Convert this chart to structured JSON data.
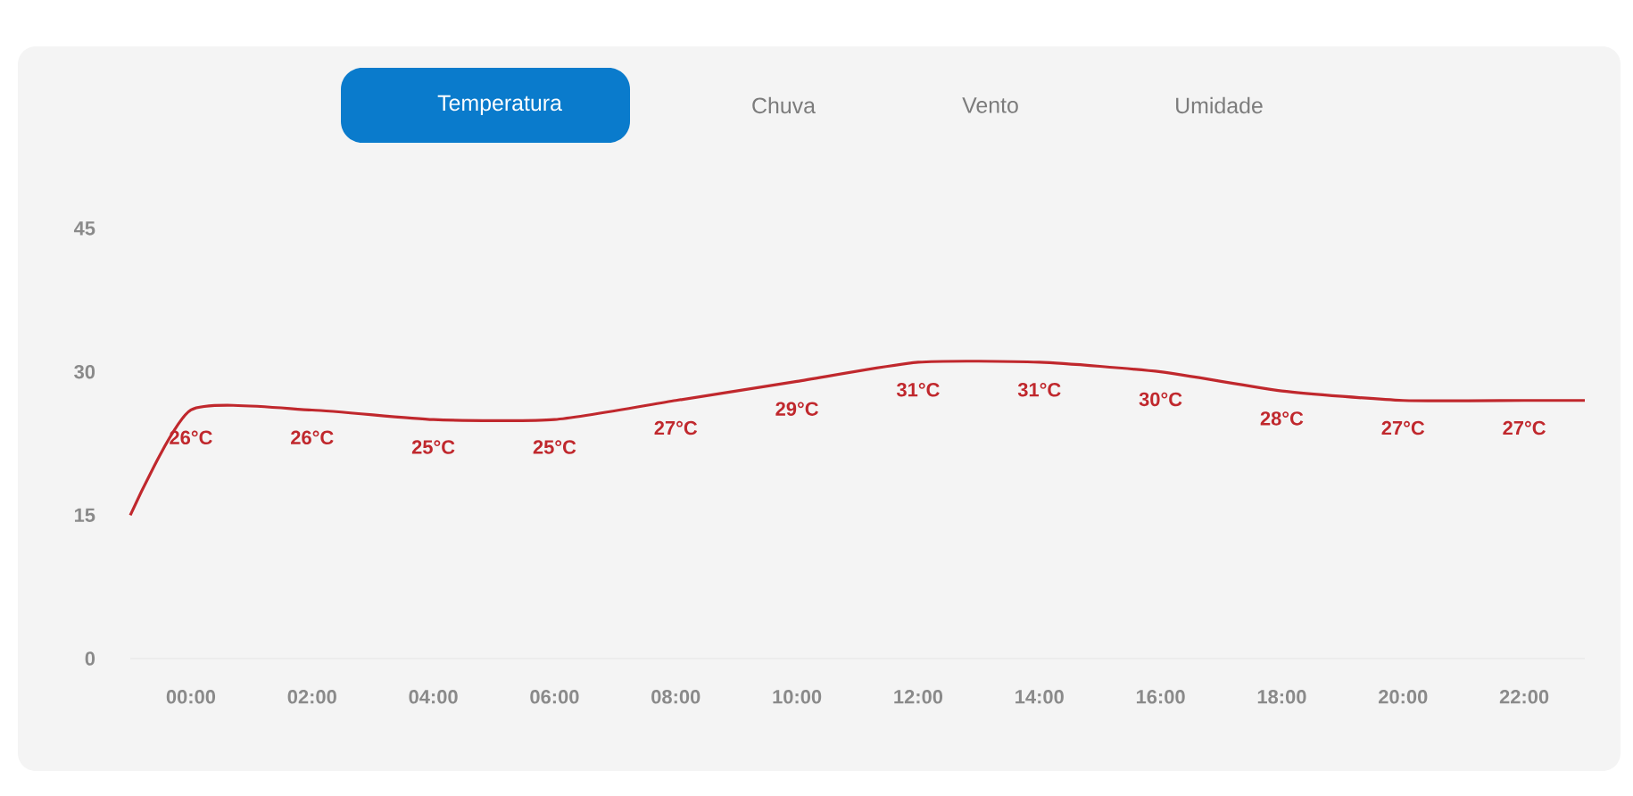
{
  "chart_data": {
    "type": "line",
    "annotations": [
      "Temperatura",
      "Chuva",
      "Vento",
      "Umidade"
    ],
    "x": [
      -1,
      0,
      2,
      4,
      6,
      8,
      10,
      12,
      14,
      16,
      18,
      20,
      22,
      23
    ],
    "values": [
      15,
      26,
      26,
      25,
      25,
      27,
      29,
      31,
      31,
      30,
      28,
      27,
      27,
      27
    ],
    "value_labels": [
      null,
      "26°C",
      "26°C",
      "25°C",
      "25°C",
      "27°C",
      "29°C",
      "31°C",
      "31°C",
      "30°C",
      "28°C",
      "27°C",
      "27°C",
      null
    ],
    "color": "#c0282d",
    "xticks": [
      {
        "value": 0,
        "label": "00:00"
      },
      {
        "value": 2,
        "label": "02:00"
      },
      {
        "value": 4,
        "label": "04:00"
      },
      {
        "value": 6,
        "label": "06:00"
      },
      {
        "value": 8,
        "label": "08:00"
      },
      {
        "value": 10,
        "label": "10:00"
      },
      {
        "value": 12,
        "label": "12:00"
      },
      {
        "value": 14,
        "label": "14:00"
      },
      {
        "value": 16,
        "label": "16:00"
      },
      {
        "value": 18,
        "label": "18:00"
      },
      {
        "value": 20,
        "label": "20:00"
      },
      {
        "value": 22,
        "label": "22:00"
      }
    ],
    "xlim": [
      -1,
      23
    ],
    "ylim": [
      0,
      45
    ],
    "yticks": [
      0,
      15,
      30,
      45
    ],
    "grid": false
  }
}
